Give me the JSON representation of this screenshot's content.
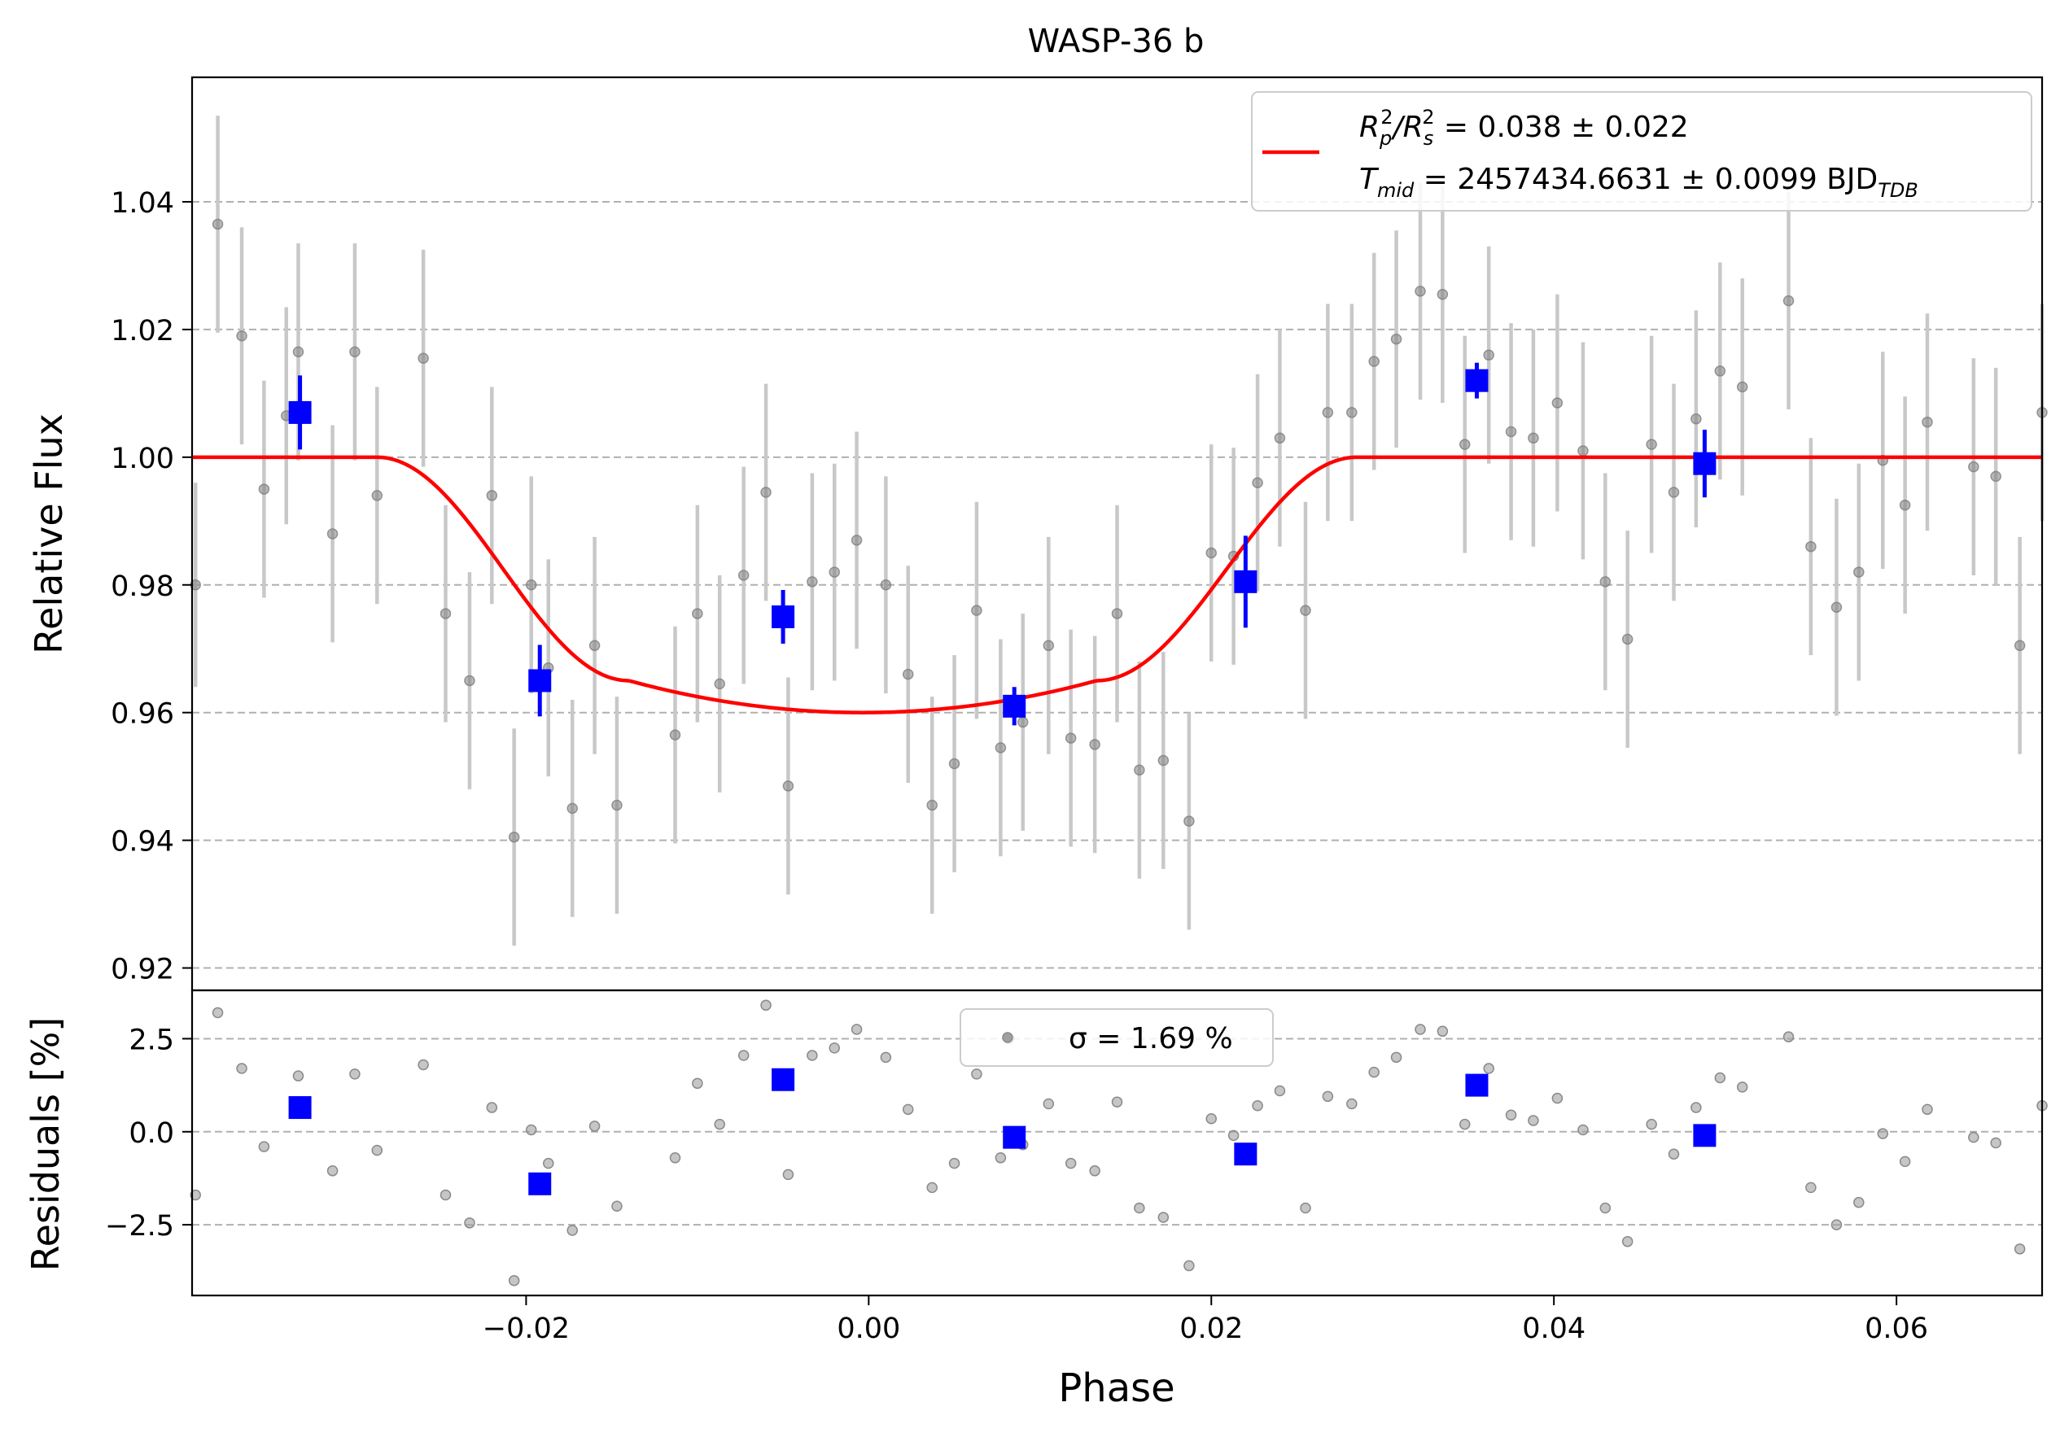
{
  "chart_data": [
    {
      "type": "scatter",
      "panel": "lightcurve",
      "title": "WASP-36 b",
      "xlabel": "Phase",
      "ylabel": "Relative Flux",
      "xlim": [
        -0.0395,
        0.0685
      ],
      "ylim": [
        0.9165,
        1.0595
      ],
      "yticks": [
        0.92,
        0.94,
        0.96,
        0.98,
        1.0,
        1.02,
        1.04
      ],
      "ytick_labels": [
        "0.92",
        "0.94",
        "0.96",
        "0.98",
        "1.00",
        "1.02",
        "1.04"
      ],
      "grid": "y-dashed",
      "legend_position": "upper-right",
      "legend": {
        "line1_parts": [
          "R",
          "p",
          "2",
          "/R",
          "s",
          "2",
          " = 0.038 ± 0.022"
        ],
        "line2_parts": [
          "T",
          "mid",
          " = 2457434.6631 ± 0.0099 BJD",
          "TDB"
        ]
      },
      "series": [
        {
          "kind": "raw",
          "marker": "circle",
          "color": "#808080",
          "errcolor": "#c8c8c8",
          "points": [
            [
              -0.0393,
              0.98,
              0.016
            ],
            [
              -0.038,
              1.0365,
              0.017
            ],
            [
              -0.0366,
              1.019,
              0.017
            ],
            [
              -0.0353,
              0.995,
              0.017
            ],
            [
              -0.034,
              1.0065,
              0.017
            ],
            [
              -0.0333,
              1.0165,
              0.017
            ],
            [
              -0.0313,
              0.988,
              0.017
            ],
            [
              -0.03,
              1.0165,
              0.017
            ],
            [
              -0.0287,
              0.994,
              0.017
            ],
            [
              -0.026,
              1.0155,
              0.017
            ],
            [
              -0.0247,
              0.9755,
              0.017
            ],
            [
              -0.0233,
              0.965,
              0.017
            ],
            [
              -0.022,
              0.994,
              0.017
            ],
            [
              -0.0207,
              0.9405,
              0.017
            ],
            [
              -0.0197,
              0.98,
              0.017
            ],
            [
              -0.0187,
              0.967,
              0.017
            ],
            [
              -0.0173,
              0.945,
              0.017
            ],
            [
              -0.016,
              0.9705,
              0.017
            ],
            [
              -0.0147,
              0.9455,
              0.017
            ],
            [
              -0.0113,
              0.9565,
              0.017
            ],
            [
              -0.01,
              0.9755,
              0.017
            ],
            [
              -0.0087,
              0.9645,
              0.017
            ],
            [
              -0.0073,
              0.9815,
              0.017
            ],
            [
              -0.006,
              0.9945,
              0.017
            ],
            [
              -0.0047,
              0.9485,
              0.017
            ],
            [
              -0.0033,
              0.9805,
              0.017
            ],
            [
              -0.002,
              0.982,
              0.017
            ],
            [
              -0.0007,
              0.987,
              0.017
            ],
            [
              0.001,
              0.98,
              0.017
            ],
            [
              0.0023,
              0.966,
              0.017
            ],
            [
              0.0037,
              0.9455,
              0.017
            ],
            [
              0.005,
              0.952,
              0.017
            ],
            [
              0.0063,
              0.976,
              0.017
            ],
            [
              0.0077,
              0.9545,
              0.017
            ],
            [
              0.009,
              0.9585,
              0.017
            ],
            [
              0.0105,
              0.9705,
              0.017
            ],
            [
              0.0118,
              0.956,
              0.017
            ],
            [
              0.0132,
              0.955,
              0.017
            ],
            [
              0.0145,
              0.9755,
              0.017
            ],
            [
              0.0158,
              0.951,
              0.017
            ],
            [
              0.0172,
              0.9525,
              0.017
            ],
            [
              0.0187,
              0.943,
              0.017
            ],
            [
              0.02,
              0.985,
              0.017
            ],
            [
              0.0213,
              0.9845,
              0.017
            ],
            [
              0.0227,
              0.996,
              0.017
            ],
            [
              0.024,
              1.003,
              0.017
            ],
            [
              0.0255,
              0.976,
              0.017
            ],
            [
              0.0268,
              1.007,
              0.017
            ],
            [
              0.0282,
              1.007,
              0.017
            ],
            [
              0.0295,
              1.015,
              0.017
            ],
            [
              0.0308,
              1.0185,
              0.017
            ],
            [
              0.0322,
              1.026,
              0.017
            ],
            [
              0.0335,
              1.0255,
              0.017
            ],
            [
              0.0348,
              1.002,
              0.017
            ],
            [
              0.0362,
              1.016,
              0.017
            ],
            [
              0.0375,
              1.004,
              0.017
            ],
            [
              0.0388,
              1.003,
              0.017
            ],
            [
              0.0402,
              1.0085,
              0.017
            ],
            [
              0.0417,
              1.001,
              0.017
            ],
            [
              0.043,
              0.9805,
              0.017
            ],
            [
              0.0443,
              0.9715,
              0.017
            ],
            [
              0.0457,
              1.002,
              0.017
            ],
            [
              0.047,
              0.9945,
              0.017
            ],
            [
              0.0483,
              1.006,
              0.017
            ],
            [
              0.0497,
              1.0135,
              0.017
            ],
            [
              0.051,
              1.011,
              0.017
            ],
            [
              0.0537,
              1.0245,
              0.017
            ],
            [
              0.055,
              0.986,
              0.017
            ],
            [
              0.0565,
              0.9765,
              0.017
            ],
            [
              0.0578,
              0.982,
              0.017
            ],
            [
              0.0592,
              0.9995,
              0.017
            ],
            [
              0.0605,
              0.9925,
              0.017
            ],
            [
              0.0618,
              1.0055,
              0.017
            ],
            [
              0.0645,
              0.9985,
              0.017
            ],
            [
              0.0658,
              0.997,
              0.017
            ],
            [
              0.0672,
              0.9705,
              0.017
            ],
            [
              0.0685,
              1.007,
              0.017
            ]
          ]
        },
        {
          "kind": "binned",
          "marker": "square",
          "color": "#0000ff",
          "points": [
            [
              -0.0332,
              1.007,
              0.0058
            ],
            [
              -0.0192,
              0.965,
              0.0056
            ],
            [
              -0.005,
              0.975,
              0.0042
            ],
            [
              0.0085,
              0.961,
              0.003
            ],
            [
              0.022,
              0.9805,
              0.0072
            ],
            [
              0.0355,
              1.012,
              0.0028
            ],
            [
              0.0488,
              0.999,
              0.0053
            ]
          ]
        },
        {
          "kind": "model",
          "color": "#ff0000",
          "depth": 0.04,
          "t1": -0.0287,
          "t2": -0.014,
          "t3": 0.0133,
          "t4": 0.0285
        }
      ]
    },
    {
      "type": "scatter",
      "panel": "residuals",
      "xlabel": "Phase",
      "ylabel": "Residuals [%]",
      "xlim": [
        -0.0395,
        0.0685
      ],
      "ylim": [
        -4.4,
        3.8
      ],
      "xticks": [
        -0.02,
        0.0,
        0.02,
        0.04,
        0.06
      ],
      "xtick_labels": [
        "−0.02",
        "0.00",
        "0.02",
        "0.04",
        "0.06"
      ],
      "yticks": [
        -2.5,
        0.0,
        2.5
      ],
      "ytick_labels": [
        "−2.5",
        "0.0",
        "2.5"
      ],
      "grid": "y-dashed",
      "legend_position": "upper-center",
      "legend": {
        "label": "σ = 1.69 %"
      },
      "series": [
        {
          "kind": "raw",
          "marker": "circle",
          "color": "#a0a0a0",
          "points": [
            [
              -0.0393,
              -1.7
            ],
            [
              -0.038,
              3.2
            ],
            [
              -0.0366,
              1.7
            ],
            [
              -0.0353,
              -0.4
            ],
            [
              -0.0333,
              1.5
            ],
            [
              -0.0313,
              -1.05
            ],
            [
              -0.03,
              1.55
            ],
            [
              -0.0287,
              -0.5
            ],
            [
              -0.026,
              1.8
            ],
            [
              -0.0247,
              -1.7
            ],
            [
              -0.0233,
              -2.45
            ],
            [
              -0.022,
              0.65
            ],
            [
              -0.0207,
              -4.0
            ],
            [
              -0.0197,
              0.05
            ],
            [
              -0.0187,
              -0.85
            ],
            [
              -0.0173,
              -2.65
            ],
            [
              -0.016,
              0.15
            ],
            [
              -0.0147,
              -2.0
            ],
            [
              -0.0113,
              -0.7
            ],
            [
              -0.01,
              1.3
            ],
            [
              -0.0087,
              0.2
            ],
            [
              -0.0073,
              2.05
            ],
            [
              -0.006,
              3.4
            ],
            [
              -0.0047,
              -1.15
            ],
            [
              -0.0033,
              2.05
            ],
            [
              -0.002,
              2.25
            ],
            [
              -0.0007,
              2.75
            ],
            [
              0.001,
              2.0
            ],
            [
              0.0023,
              0.6
            ],
            [
              0.0037,
              -1.5
            ],
            [
              0.005,
              -0.85
            ],
            [
              0.0063,
              1.55
            ],
            [
              0.0077,
              -0.7
            ],
            [
              0.0082,
              2.5
            ],
            [
              0.009,
              -0.35
            ],
            [
              0.0105,
              0.75
            ],
            [
              0.0118,
              -0.85
            ],
            [
              0.0132,
              -1.05
            ],
            [
              0.0145,
              0.8
            ],
            [
              0.0158,
              -2.05
            ],
            [
              0.0172,
              -2.3
            ],
            [
              0.0187,
              -3.6
            ],
            [
              0.02,
              0.35
            ],
            [
              0.0213,
              -0.1
            ],
            [
              0.0227,
              0.7
            ],
            [
              0.024,
              1.1
            ],
            [
              0.0255,
              -2.05
            ],
            [
              0.0268,
              0.95
            ],
            [
              0.0282,
              0.75
            ],
            [
              0.0295,
              1.6
            ],
            [
              0.0308,
              2.0
            ],
            [
              0.0322,
              2.75
            ],
            [
              0.0335,
              2.7
            ],
            [
              0.0348,
              0.2
            ],
            [
              0.0362,
              1.7
            ],
            [
              0.0375,
              0.45
            ],
            [
              0.0388,
              0.3
            ],
            [
              0.0402,
              0.9
            ],
            [
              0.0417,
              0.05
            ],
            [
              0.043,
              -2.05
            ],
            [
              0.0443,
              -2.95
            ],
            [
              0.0457,
              0.2
            ],
            [
              0.047,
              -0.6
            ],
            [
              0.0483,
              0.65
            ],
            [
              0.0497,
              1.45
            ],
            [
              0.051,
              1.2
            ],
            [
              0.0537,
              2.55
            ],
            [
              0.055,
              -1.5
            ],
            [
              0.0565,
              -2.5
            ],
            [
              0.0578,
              -1.9
            ],
            [
              0.0592,
              -0.05
            ],
            [
              0.0605,
              -0.8
            ],
            [
              0.0618,
              0.6
            ],
            [
              0.0645,
              -0.15
            ],
            [
              0.0658,
              -0.3
            ],
            [
              0.0672,
              -3.15
            ],
            [
              0.0685,
              0.7
            ]
          ]
        },
        {
          "kind": "binned",
          "marker": "square",
          "color": "#0000ff",
          "points": [
            [
              -0.0332,
              0.65
            ],
            [
              -0.0192,
              -1.4
            ],
            [
              -0.005,
              1.4
            ],
            [
              0.0085,
              -0.15
            ],
            [
              0.022,
              -0.6
            ],
            [
              0.0355,
              1.25
            ],
            [
              0.0488,
              -0.1
            ]
          ]
        }
      ]
    }
  ]
}
